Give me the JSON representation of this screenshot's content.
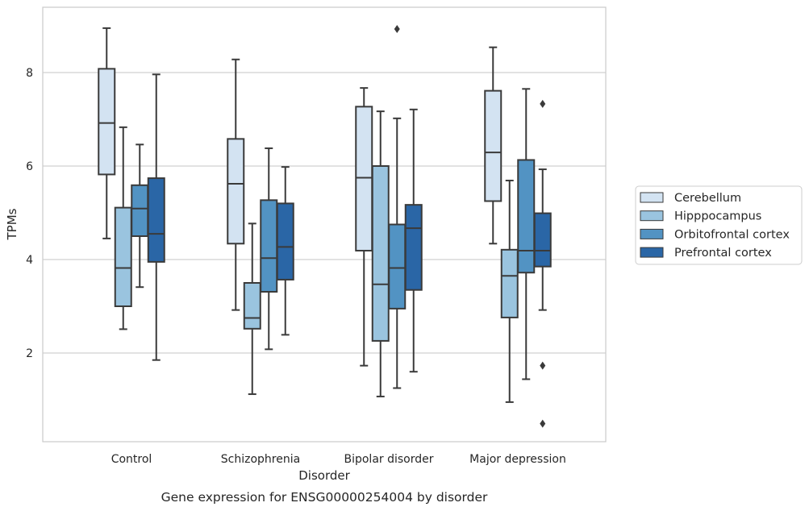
{
  "chart_data": {
    "type": "box",
    "title": "Gene expression for ENSG00000254004 by disorder",
    "xlabel": "Disorder",
    "ylabel": "TPMs",
    "ylim": [
      0.2,
      9.5
    ],
    "yticks": [
      2,
      4,
      6,
      8
    ],
    "grid": "horizontal",
    "legend_position": "right",
    "categories": [
      "Control",
      "Schizophrenia",
      "Bipolar disorder",
      "Major depression"
    ],
    "series": [
      {
        "name": "Cerebellum",
        "color": "#d3e3f2",
        "boxes": [
          {
            "whislo": 4.45,
            "q1": 5.82,
            "med": 6.92,
            "q3": 8.08,
            "whishi": 8.95,
            "fliers": []
          },
          {
            "whislo": 2.92,
            "q1": 4.34,
            "med": 5.62,
            "q3": 6.58,
            "whishi": 8.28,
            "fliers": []
          },
          {
            "whislo": 1.73,
            "q1": 4.19,
            "med": 5.75,
            "q3": 7.27,
            "whishi": 7.67,
            "fliers": []
          },
          {
            "whislo": 4.34,
            "q1": 5.25,
            "med": 6.29,
            "q3": 7.61,
            "whishi": 8.54,
            "fliers": []
          }
        ]
      },
      {
        "name": "Hipppocampus",
        "color": "#9ac4df",
        "boxes": [
          {
            "whislo": 2.51,
            "q1": 3.0,
            "med": 3.82,
            "q3": 5.11,
            "whishi": 6.83,
            "fliers": []
          },
          {
            "whislo": 1.12,
            "q1": 2.52,
            "med": 2.75,
            "q3": 3.5,
            "whishi": 4.77,
            "fliers": []
          },
          {
            "whislo": 1.07,
            "q1": 2.26,
            "med": 3.47,
            "q3": 6.0,
            "whishi": 7.17,
            "fliers": []
          },
          {
            "whislo": 0.95,
            "q1": 2.76,
            "med": 3.65,
            "q3": 4.21,
            "whishi": 5.69,
            "fliers": []
          }
        ]
      },
      {
        "name": "Orbitofrontal cortex",
        "color": "#5293c3",
        "boxes": [
          {
            "whislo": 3.41,
            "q1": 4.5,
            "med": 5.09,
            "q3": 5.59,
            "whishi": 6.46,
            "fliers": []
          },
          {
            "whislo": 2.08,
            "q1": 3.31,
            "med": 4.03,
            "q3": 5.27,
            "whishi": 6.38,
            "fliers": []
          },
          {
            "whislo": 1.25,
            "q1": 2.95,
            "med": 3.82,
            "q3": 4.75,
            "whishi": 7.02,
            "fliers": [
              8.93
            ]
          },
          {
            "whislo": 1.44,
            "q1": 3.72,
            "med": 4.19,
            "q3": 6.13,
            "whishi": 7.65,
            "fliers": []
          }
        ]
      },
      {
        "name": "Prefrontal cortex",
        "color": "#2a66a6",
        "boxes": [
          {
            "whislo": 1.85,
            "q1": 3.95,
            "med": 4.55,
            "q3": 5.74,
            "whishi": 7.96,
            "fliers": []
          },
          {
            "whislo": 2.39,
            "q1": 3.57,
            "med": 4.27,
            "q3": 5.2,
            "whishi": 5.98,
            "fliers": []
          },
          {
            "whislo": 1.6,
            "q1": 3.35,
            "med": 4.67,
            "q3": 5.17,
            "whishi": 7.21,
            "fliers": []
          },
          {
            "whislo": 2.92,
            "q1": 3.85,
            "med": 4.19,
            "q3": 4.99,
            "whishi": 5.93,
            "fliers": [
              7.33,
              1.73,
              0.49
            ]
          }
        ]
      }
    ]
  }
}
